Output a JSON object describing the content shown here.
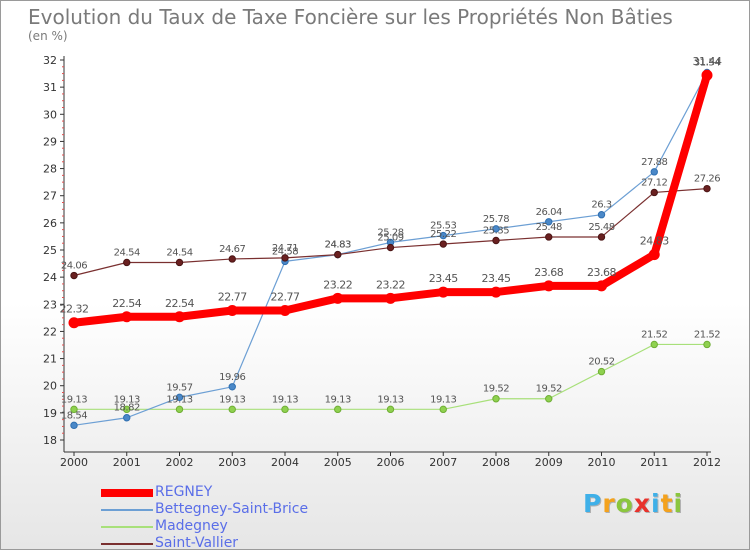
{
  "chart_data": {
    "type": "line",
    "title": "Evolution du Taux de Taxe Foncière sur les Propriétés Non Bâties",
    "ylabel": "(en %)",
    "xlabel": "",
    "categories": [
      "2000",
      "2001",
      "2002",
      "2003",
      "2004",
      "2005",
      "2006",
      "2007",
      "2008",
      "2009",
      "2010",
      "2011",
      "2012"
    ],
    "ylim": [
      18,
      32
    ],
    "yticks": [
      18,
      19,
      20,
      21,
      22,
      23,
      24,
      25,
      26,
      27,
      28,
      29,
      30,
      31,
      32
    ],
    "grid": false,
    "legend_position": "bottom-left",
    "series": [
      {
        "name": "REGNEY",
        "color": "#ff0000",
        "values": [
          22.32,
          22.54,
          22.54,
          22.77,
          22.77,
          23.22,
          23.22,
          23.45,
          23.45,
          23.68,
          23.68,
          24.83,
          31.44
        ]
      },
      {
        "name": "Bettegney-Saint-Brice",
        "color": "#6c9fd4",
        "values": [
          18.54,
          18.82,
          19.57,
          19.96,
          24.58,
          24.83,
          25.28,
          25.53,
          25.78,
          26.04,
          26.3,
          27.88,
          31.54
        ]
      },
      {
        "name": "Madegney",
        "color": "#a8e07a",
        "values": [
          19.13,
          19.13,
          19.13,
          19.13,
          19.13,
          19.13,
          19.13,
          19.13,
          19.52,
          19.52,
          20.52,
          21.52,
          21.52
        ]
      },
      {
        "name": "Saint-Vallier",
        "color": "#7a3030",
        "values": [
          24.06,
          24.54,
          24.54,
          24.67,
          24.71,
          24.83,
          25.09,
          25.22,
          25.35,
          25.48,
          25.48,
          27.12,
          27.26
        ]
      }
    ]
  },
  "logo": {
    "letters": [
      "P",
      "r",
      "o",
      "x",
      "i",
      "t",
      "i"
    ],
    "colors": [
      "#3fb0e8",
      "#f4a21d",
      "#8bc63e",
      "#e8322c",
      "#3fb0e8",
      "#f4a21d",
      "#8bc63e"
    ]
  }
}
